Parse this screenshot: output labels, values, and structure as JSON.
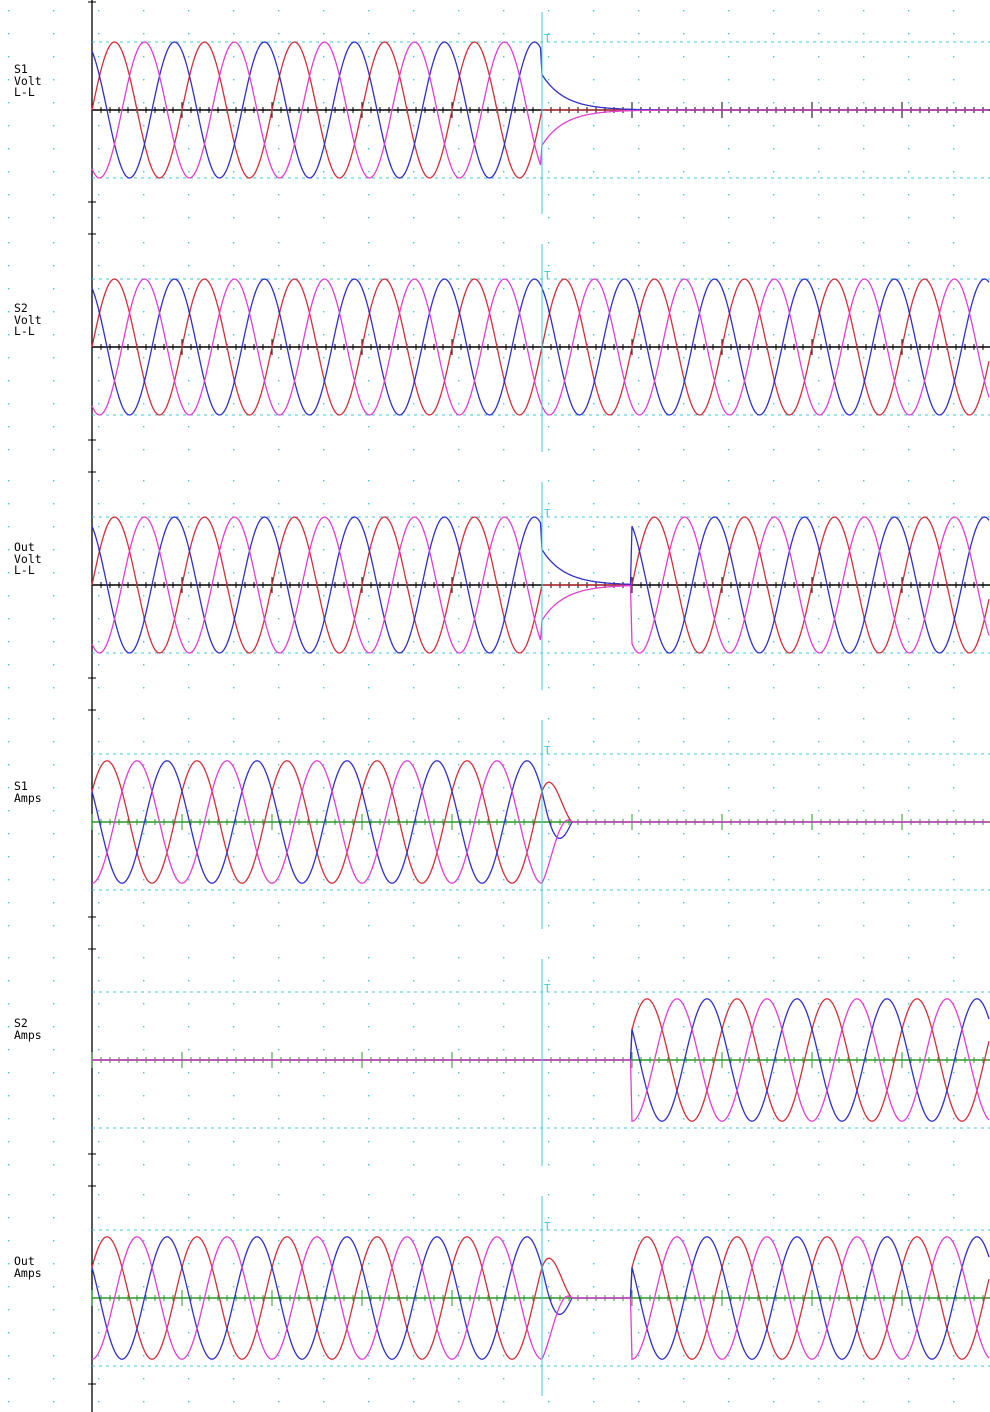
{
  "chart_data": [
    {
      "type": "line",
      "channel_label": [
        "S1",
        "Volt",
        "L-L"
      ],
      "trigger_marker": "T",
      "zero_axis_color": "#000000",
      "series": [
        {
          "color": "#d0303a",
          "phase_deg": 0
        },
        {
          "color": "#3030c8",
          "phase_deg": 120
        },
        {
          "color": "#e040d0",
          "phase_deg": 240
        }
      ],
      "amplitude": 1,
      "events": {
        "pre_trigger": "sine",
        "trigger": "collapse",
        "recovery": "none",
        "post_trigger_color_order": [
          "#e040d0",
          "#d0303a",
          "#3030c8"
        ]
      },
      "y_reference": "dashed at ±1"
    },
    {
      "type": "line",
      "channel_label": [
        "S2",
        "Volt",
        "L-L"
      ],
      "trigger_marker": "T",
      "zero_axis_color": "#000000",
      "series": [
        {
          "color": "#d0303a",
          "phase_deg": 0
        },
        {
          "color": "#3030c8",
          "phase_deg": 120
        },
        {
          "color": "#e040d0",
          "phase_deg": 240
        }
      ],
      "amplitude": 1,
      "events": {
        "pre_trigger": "sine",
        "trigger": "none",
        "recovery": "continuous"
      },
      "y_reference": "dashed at ±1"
    },
    {
      "type": "line",
      "channel_label": [
        "Out",
        "Volt",
        "L-L"
      ],
      "trigger_marker": "T",
      "zero_axis_color": "#000000",
      "series": [
        {
          "color": "#d0303a",
          "phase_deg": 0
        },
        {
          "color": "#3030c8",
          "phase_deg": 120
        },
        {
          "color": "#e040d0",
          "phase_deg": 240
        }
      ],
      "amplitude": 1,
      "events": {
        "pre_trigger": "sine",
        "trigger": "collapse",
        "recovery": "transfer"
      },
      "y_reference": "dashed at ±1"
    },
    {
      "type": "line",
      "channel_label": [
        "S1",
        "Amps"
      ],
      "trigger_marker": "T",
      "zero_axis_color": "#2a9a2a",
      "series": [
        {
          "color": "#d0303a",
          "phase_deg": 30
        },
        {
          "color": "#3030c8",
          "phase_deg": 150
        },
        {
          "color": "#e040d0",
          "phase_deg": 270
        }
      ],
      "amplitude": 0.9,
      "events": {
        "pre_trigger": "sine",
        "trigger": "decay_to_zero",
        "recovery": "none"
      },
      "y_reference": "dashed at ±1"
    },
    {
      "type": "line",
      "channel_label": [
        "S2",
        "Amps"
      ],
      "trigger_marker": "T",
      "zero_axis_color": "#2a9a2a",
      "series": [
        {
          "color": "#d0303a",
          "phase_deg": 30
        },
        {
          "color": "#3030c8",
          "phase_deg": 150
        },
        {
          "color": "#e040d0",
          "phase_deg": 270
        }
      ],
      "amplitude": 0.9,
      "events": {
        "pre_trigger": "zero",
        "trigger": "none",
        "recovery": "transfer"
      },
      "y_reference": "dashed at ±1"
    },
    {
      "type": "line",
      "channel_label": [
        "Out",
        "Amps"
      ],
      "trigger_marker": "T",
      "zero_axis_color": "#2a9a2a",
      "series": [
        {
          "color": "#d0303a",
          "phase_deg": 30
        },
        {
          "color": "#3030c8",
          "phase_deg": 150
        },
        {
          "color": "#e040d0",
          "phase_deg": 270
        }
      ],
      "amplitude": 0.9,
      "events": {
        "pre_trigger": "sine",
        "trigger": "decay_to_zero",
        "recovery": "transfer",
        "noise_on_axis": true
      },
      "y_reference": "dashed at ±1"
    }
  ],
  "colors": {
    "grid_dots": "#44c8d8",
    "reference_dashes": "#44c8d8",
    "trigger_line": "#44c8d8",
    "axis": "#000000"
  },
  "cycles_visible": 10,
  "trigger_cycle": 5,
  "transfer_cycle": 6
}
